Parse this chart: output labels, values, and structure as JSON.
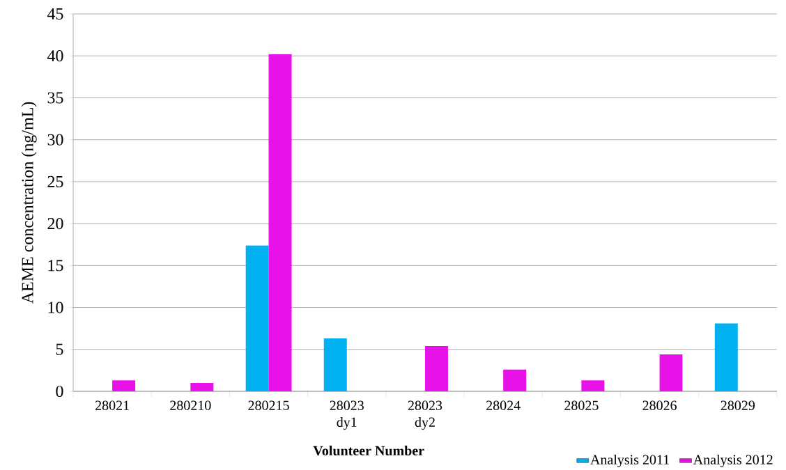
{
  "chart_data": {
    "type": "bar",
    "xlabel": "Volunteer Number",
    "ylabel": "AEME concentration (ng/mL)",
    "categories": [
      "28021",
      "280210",
      "280215",
      "28023 dy1",
      "28023 dy2",
      "28024",
      "28025",
      "28026",
      "28029"
    ],
    "series": [
      {
        "name": "Analysis 2011",
        "color": "#00b0f0",
        "values": [
          null,
          null,
          17.4,
          6.3,
          null,
          null,
          null,
          null,
          8.1
        ]
      },
      {
        "name": "Analysis 2012",
        "color": "#e812e8",
        "values": [
          1.3,
          1.0,
          40.2,
          null,
          5.4,
          2.6,
          1.3,
          4.4,
          null
        ]
      }
    ],
    "ylim": [
      0,
      45
    ],
    "yticks": [
      0,
      5,
      10,
      15,
      20,
      25,
      30,
      35,
      40,
      45
    ],
    "grid": "y",
    "legend": "bottom right"
  }
}
